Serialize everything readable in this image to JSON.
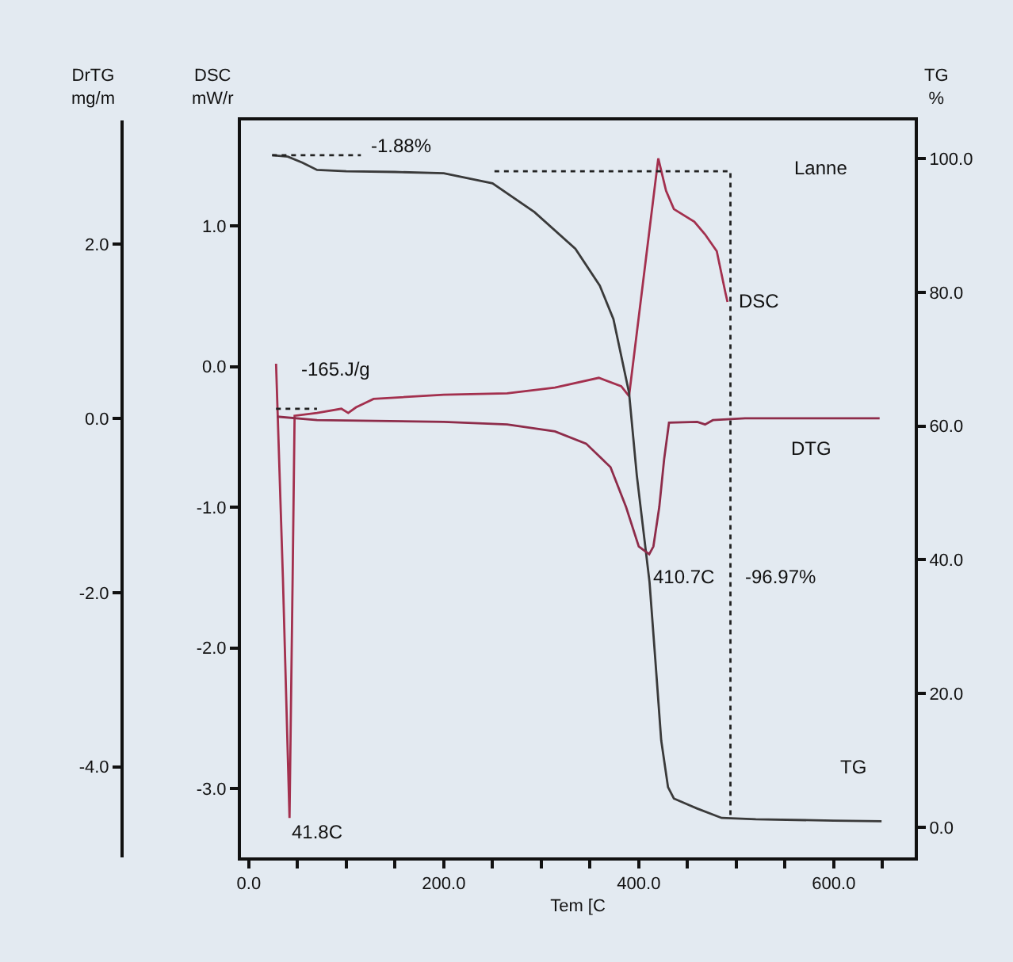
{
  "chart_data": {
    "type": "line",
    "xlabel": "Tem [C",
    "ylabel": "DSC\nmW/r",
    "y2label": "TG\n%",
    "y3label": "DrTG\nmg/m",
    "xlim": [
      -8,
      683
    ],
    "xticks": [
      {
        "value": 0,
        "label": "0.0"
      },
      {
        "value": 50,
        "label": null
      },
      {
        "value": 100,
        "label": null
      },
      {
        "value": 150,
        "label": null
      },
      {
        "value": 200,
        "label": "200.0"
      },
      {
        "value": 250,
        "label": null
      },
      {
        "value": 300,
        "label": null
      },
      {
        "value": 350,
        "label": null
      },
      {
        "value": 400,
        "label": "400.0"
      },
      {
        "value": 450,
        "label": null
      },
      {
        "value": 500,
        "label": null
      },
      {
        "value": 550,
        "label": null
      },
      {
        "value": 600,
        "label": "600.0"
      },
      {
        "value": 650,
        "label": null
      }
    ],
    "ylim": [
      -3.49,
      1.75
    ],
    "yticks": [
      {
        "value": -3,
        "label": "-3.0"
      },
      {
        "value": -2,
        "label": "-2.0"
      },
      {
        "value": -1,
        "label": "-1.0"
      },
      {
        "value": 0,
        "label": "0.0"
      },
      {
        "value": 1,
        "label": "1.0"
      }
    ],
    "y2lim": [
      -4.5,
      105.7
    ],
    "y2ticks": [
      {
        "value": 0,
        "label": "0.0"
      },
      {
        "value": 20,
        "label": "20.0"
      },
      {
        "value": 40,
        "label": "40.0"
      },
      {
        "value": 60,
        "label": "60.0"
      },
      {
        "value": 80,
        "label": "80.0"
      },
      {
        "value": 100,
        "label": "100.0"
      }
    ],
    "y3lim": [
      -5.04,
      3.42
    ],
    "y3ticks": [
      {
        "value": -4,
        "label": "-4.0"
      },
      {
        "value": -2,
        "label": "-2.0"
      },
      {
        "value": 0,
        "label": "0.0"
      },
      {
        "value": 2,
        "label": "2.0"
      }
    ],
    "series": [
      {
        "name": "TG",
        "color": "#3a3a3a",
        "axis": "y2",
        "x": [
          24,
          40,
          55,
          70,
          100,
          150,
          200,
          250,
          293,
          335,
          360,
          374,
          390,
          398,
          411,
          417,
          423,
          430,
          436,
          460,
          485,
          520,
          600,
          649
        ],
        "values": [
          100.5,
          100.3,
          99.4,
          98.3,
          98.1,
          98.0,
          97.8,
          96.3,
          92,
          86.5,
          81,
          76,
          65,
          52.6,
          36.7,
          25,
          13,
          6,
          4.3,
          2.8,
          1.4,
          1.2,
          1.0,
          0.9
        ]
      },
      {
        "name": "DSC",
        "color": "#a3304e",
        "axis": "y",
        "x": [
          28,
          35,
          41.8,
          45,
          47,
          70,
          95,
          102,
          110,
          128,
          200,
          265,
          314,
          359,
          382,
          390,
          420,
          428,
          436,
          457,
          468,
          480,
          489,
          491
        ],
        "values": [
          0.02,
          -1.5,
          -3.21,
          -1.5,
          -0.35,
          -0.33,
          -0.3,
          -0.33,
          -0.29,
          -0.23,
          -0.2,
          -0.19,
          -0.15,
          -0.08,
          -0.14,
          -0.21,
          1.48,
          1.25,
          1.12,
          1.03,
          0.94,
          0.82,
          0.52,
          0.46
        ]
      },
      {
        "name": "DTG",
        "color": "#8e2c4a",
        "axis": "y3",
        "x": [
          29,
          70,
          200,
          265,
          314,
          346,
          371,
          387,
          400,
          410.7,
          415,
          421,
          426,
          431,
          460,
          468,
          476,
          509,
          647
        ],
        "values": [
          0.02,
          -0.02,
          -0.04,
          -0.07,
          -0.15,
          -0.29,
          -0.56,
          -1.02,
          -1.47,
          -1.56,
          -1.47,
          -1.02,
          -0.47,
          -0.05,
          -0.04,
          -0.07,
          -0.02,
          0,
          0
        ]
      },
      {
        "color": "#222222",
        "axis": "y2",
        "line_style": "dotted",
        "x": [
          24,
          115
        ],
        "values": [
          100.5,
          100.5
        ]
      },
      {
        "color": "#222222",
        "axis": "y2",
        "line_style": "dotted",
        "x": [
          252,
          494,
          494
        ],
        "values": [
          98.1,
          98.1,
          1.2
        ]
      },
      {
        "color": "#222222",
        "axis": "y",
        "line_style": "dotted",
        "x": [
          28,
          70
        ],
        "values": [
          -0.3,
          -0.3
        ]
      }
    ],
    "annotations": [
      "-1.88%",
      "-165.J/g",
      "41.8C",
      {
        "text": "410.7C",
        "x": 411,
        "y": -1.5
      },
      "-96.97%",
      "Lanne"
    ]
  }
}
